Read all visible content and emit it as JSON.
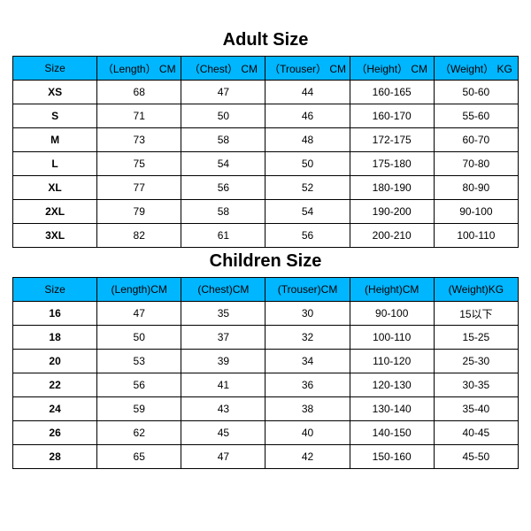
{
  "adult": {
    "title": "Adult Size",
    "title_fontsize": 20,
    "header_bg": "#00b6ff",
    "border_color": "#000000",
    "text_color": "#000000",
    "columns": [
      "Size",
      "（Length） CM",
      "（Chest） CM",
      "（Trouser） CM",
      "（Height） CM",
      "（Weight） KG"
    ],
    "rows": [
      [
        "XS",
        "68",
        "47",
        "44",
        "160-165",
        "50-60"
      ],
      [
        "S",
        "71",
        "50",
        "46",
        "160-170",
        "55-60"
      ],
      [
        "M",
        "73",
        "58",
        "48",
        "172-175",
        "60-70"
      ],
      [
        "L",
        "75",
        "54",
        "50",
        "175-180",
        "70-80"
      ],
      [
        "XL",
        "77",
        "56",
        "52",
        "180-190",
        "80-90"
      ],
      [
        "2XL",
        "79",
        "58",
        "54",
        "190-200",
        "90-100"
      ],
      [
        "3XL",
        "82",
        "61",
        "56",
        "200-210",
        "100-110"
      ]
    ]
  },
  "children": {
    "title": "Children Size",
    "title_fontsize": 20,
    "header_bg": "#00b6ff",
    "border_color": "#000000",
    "text_color": "#000000",
    "columns": [
      "Size",
      "(Length)CM",
      "(Chest)CM",
      "(Trouser)CM",
      "(Height)CM",
      "(Weight)KG"
    ],
    "rows": [
      [
        "16",
        "47",
        "35",
        "30",
        "90-100",
        "15以下"
      ],
      [
        "18",
        "50",
        "37",
        "32",
        "100-110",
        "15-25"
      ],
      [
        "20",
        "53",
        "39",
        "34",
        "110-120",
        "25-30"
      ],
      [
        "22",
        "56",
        "41",
        "36",
        "120-130",
        "30-35"
      ],
      [
        "24",
        "59",
        "43",
        "38",
        "130-140",
        "35-40"
      ],
      [
        "26",
        "62",
        "45",
        "40",
        "140-150",
        "40-45"
      ],
      [
        "28",
        "65",
        "47",
        "42",
        "150-160",
        "45-50"
      ]
    ]
  }
}
